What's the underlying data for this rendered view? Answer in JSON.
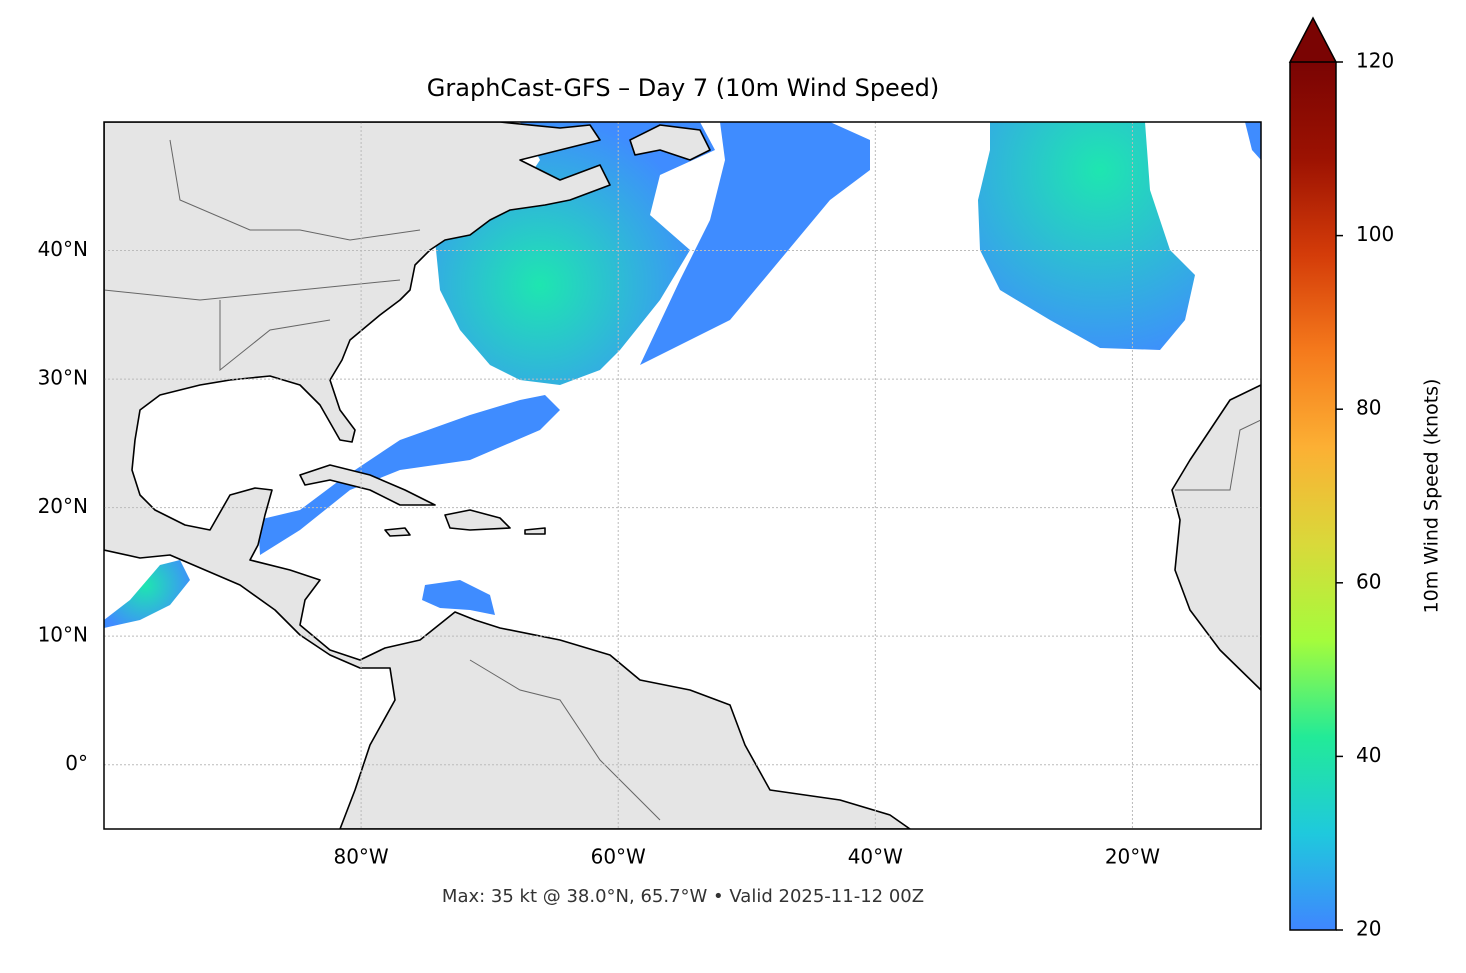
{
  "chart_data": {
    "type": "map",
    "title": "GraphCast-GFS – Day 7 (10m Wind Speed)",
    "footer": "Max: 35 kt @ 38.0°N, 65.7°W • Valid 2025-11-12 00Z",
    "xlim": [
      -100,
      -10
    ],
    "ylim": [
      -5,
      50
    ],
    "xticks": [
      {
        "value": -80,
        "label": "80°W"
      },
      {
        "value": -60,
        "label": "60°W"
      },
      {
        "value": -40,
        "label": "40°W"
      },
      {
        "value": -20,
        "label": "20°W"
      }
    ],
    "yticks": [
      {
        "value": 0,
        "label": "0°"
      },
      {
        "value": 10,
        "label": "10°N"
      },
      {
        "value": 20,
        "label": "20°N"
      },
      {
        "value": 30,
        "label": "30°N"
      },
      {
        "value": 40,
        "label": "40°N"
      }
    ],
    "grid": true,
    "colorbar": {
      "label": "10m Wind Speed (knots)",
      "lim": [
        20,
        120
      ],
      "ticks": [
        20,
        40,
        60,
        80,
        100,
        120
      ],
      "colors": [
        "#3f86ff",
        "#1fc9dd",
        "#22ea98",
        "#a4fc3c",
        "#d9d93a",
        "#fcb034",
        "#f57a1c",
        "#d43c09",
        "#9c1202",
        "#7a0403"
      ]
    }
  }
}
